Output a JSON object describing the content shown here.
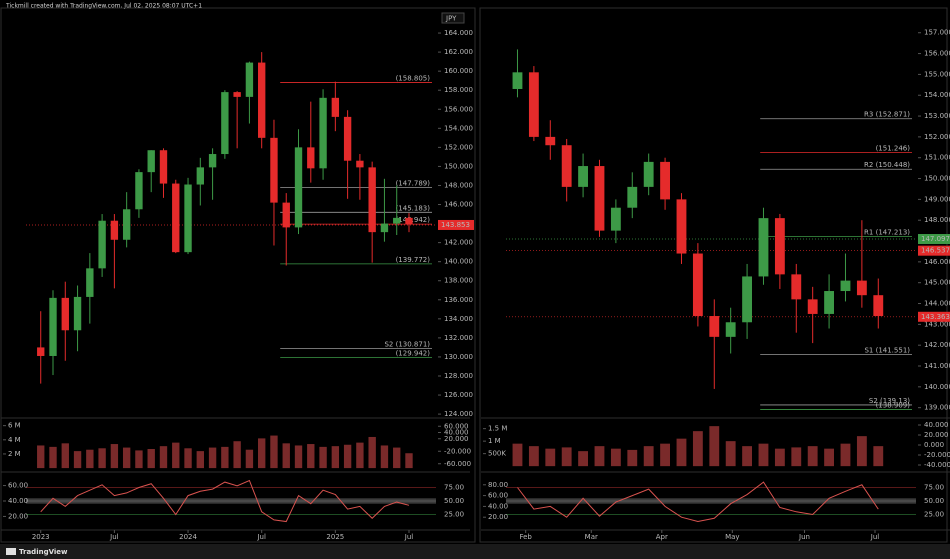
{
  "header": "Tickmill created with TradingView.com, Jul 02, 2025 08:07 UTC+1",
  "footer": "TradingView",
  "chart_data": [
    {
      "type": "candlestick",
      "currency": "JPY",
      "up_color": "#3d9a47",
      "down_color": "#e52b2b",
      "x": [
        0,
        1,
        2,
        3,
        4,
        5,
        6,
        7,
        8,
        9,
        10,
        11,
        12,
        13,
        14,
        15,
        16,
        17,
        18,
        19,
        20,
        21,
        22,
        23,
        24,
        25,
        26,
        27,
        28,
        29,
        30
      ],
      "open": [
        131,
        130.1,
        136.2,
        132.8,
        136.3,
        139.3,
        144.3,
        142.3,
        145.5,
        149.4,
        151.7,
        148.2,
        141.0,
        148.1,
        149.9,
        151.3,
        157.8,
        157.3,
        160.9,
        153.0,
        146.2,
        143.6,
        152.0,
        149.8,
        157.2,
        155.2,
        150.6,
        149.9,
        143.1,
        144.0,
        144.6
      ],
      "high": [
        134.8,
        137.0,
        137.9,
        137.5,
        140.9,
        145.0,
        145.0,
        147.3,
        149.7,
        151.7,
        151.9,
        148.6,
        148.8,
        150.9,
        151.9,
        158.0,
        157.9,
        161.0,
        162.0,
        154.9,
        147.2,
        153.9,
        156.8,
        158.1,
        158.9,
        155.9,
        151.3,
        150.5,
        148.7,
        148.0,
        145.1
      ],
      "low": [
        127.2,
        128.1,
        129.6,
        130.6,
        133.5,
        138.4,
        137.2,
        141.5,
        144.6,
        147.3,
        146.7,
        140.9,
        140.8,
        145.9,
        146.5,
        150.8,
        151.9,
        154.5,
        151.9,
        141.7,
        139.6,
        142.9,
        148.3,
        148.6,
        153.7,
        146.6,
        146.5,
        139.9,
        142.1,
        142.8,
        143.1
      ],
      "close": [
        130.1,
        136.2,
        132.8,
        136.3,
        139.3,
        144.3,
        142.3,
        145.5,
        149.4,
        151.7,
        148.2,
        141.0,
        148.1,
        149.9,
        151.3,
        157.8,
        157.3,
        160.9,
        153.0,
        146.2,
        143.6,
        152.0,
        149.8,
        157.2,
        155.2,
        150.6,
        149.9,
        143.1,
        144.0,
        144.6,
        143.9
      ],
      "xlim": [
        -1.2,
        32.2
      ],
      "xticks": [
        {
          "value": 0,
          "label": "2023"
        },
        {
          "value": 6,
          "label": "Jul"
        },
        {
          "value": 12,
          "label": "2024"
        },
        {
          "value": 18,
          "label": "Jul"
        },
        {
          "value": 24,
          "label": "2025"
        },
        {
          "value": 30,
          "label": "Jul"
        }
      ],
      "ylim": [
        123.8,
        166.0
      ],
      "yticks": [
        {
          "value": 124,
          "label": "124.000"
        },
        {
          "value": 126,
          "label": "126.000"
        },
        {
          "value": 128,
          "label": "128.000"
        },
        {
          "value": 130,
          "label": "130.000"
        },
        {
          "value": 132,
          "label": "132.000"
        },
        {
          "value": 134,
          "label": "134.000"
        },
        {
          "value": 136,
          "label": "136.000"
        },
        {
          "value": 138,
          "label": "138.000"
        },
        {
          "value": 140,
          "label": "140.000"
        },
        {
          "value": 142,
          "label": "142.000"
        },
        {
          "value": 144,
          "label": "144.000"
        },
        {
          "value": 146,
          "label": "146.000"
        },
        {
          "value": 148,
          "label": "148.000"
        },
        {
          "value": 150,
          "label": "150.000"
        },
        {
          "value": 152,
          "label": "152.000"
        },
        {
          "value": 154,
          "label": "154.000"
        },
        {
          "value": 156,
          "label": "156.000"
        },
        {
          "value": 158,
          "label": "158.000"
        },
        {
          "value": 160,
          "label": "160.000"
        },
        {
          "value": 162,
          "label": "162.000"
        },
        {
          "value": 164,
          "label": "164.000"
        }
      ],
      "levels": [
        {
          "value": 158.805,
          "label": "(158.805)",
          "color": "#e52b2b"
        },
        {
          "value": 147.789,
          "label": "(147.789)",
          "color": "#9a9a9a"
        },
        {
          "value": 145.183,
          "label": "(145.183)",
          "color": "#9a9a9a"
        },
        {
          "value": 143.942,
          "label": "(143.942)",
          "color": "#e52b2b"
        },
        {
          "value": 139.772,
          "label": "(139.772)",
          "color": "#3d9a47"
        },
        {
          "value": 130.871,
          "label": "S2 (130.871)",
          "color": "#9a9a9a"
        },
        {
          "value": 129.942,
          "label": "(129.942)",
          "color": "#3d9a47"
        },
        {
          "value": 143.853,
          "color": "#e52b2b",
          "box": true
        }
      ],
      "volume": {
        "color": "#7a2a2a",
        "values": [
          3200000,
          3000000,
          3500000,
          2400000,
          2600000,
          2800000,
          3400000,
          2900000,
          2500000,
          2700000,
          3100000,
          3600000,
          2800000,
          2400000,
          2900000,
          3000000,
          3800000,
          2600000,
          4200000,
          4600000,
          3500000,
          3200000,
          3400000,
          3000000,
          3100000,
          3300000,
          3600000,
          4400000,
          3200000,
          2900000,
          2100000
        ],
        "ylim": [
          -270000,
          6800000
        ],
        "yticks": [
          {
            "value": 6000000,
            "label": "6 M"
          },
          {
            "value": 4000000,
            "label": "4 M"
          },
          {
            "value": 2000000,
            "label": "2 M"
          }
        ],
        "y2lim": [
          -80,
          80
        ],
        "y2ticks": [
          {
            "value": 60,
            "label": "60.000"
          },
          {
            "value": 40,
            "label": "40.000"
          },
          {
            "value": 20,
            "label": "20.000"
          },
          {
            "value": -20,
            "label": "-20.000"
          },
          {
            "value": -60,
            "label": "-60.000"
          }
        ]
      },
      "oscillator": {
        "color": "#d9534f",
        "values": [
          30,
          55,
          40,
          60,
          70,
          80,
          60,
          65,
          75,
          82,
          55,
          25,
          60,
          68,
          72,
          85,
          78,
          88,
          30,
          15,
          12,
          60,
          45,
          70,
          62,
          35,
          40,
          18,
          40,
          48,
          42
        ],
        "ylim": [
          0,
          100
        ],
        "yticks": [
          {
            "value": 75,
            "label": "75.00"
          },
          {
            "value": 50,
            "label": "50.00"
          },
          {
            "value": 25,
            "label": "25.00"
          }
        ],
        "left_ylim": [
          5,
          75
        ],
        "left_yticks": [
          {
            "value": 60,
            "label": "60.00"
          },
          {
            "value": 40,
            "label": "40.00"
          },
          {
            "value": 20,
            "label": "20.00"
          }
        ]
      }
    },
    {
      "type": "candlestick",
      "up_color": "#3d9a47",
      "down_color": "#e52b2b",
      "x": [
        -0.5,
        0.5,
        1.5,
        2.5,
        3.5,
        4.5,
        5.5,
        6.5,
        7.5,
        8.5,
        9.5,
        10.5,
        11.5,
        12.5,
        13.5,
        14.5,
        15.5,
        16.5,
        17.5,
        18.5,
        19.5,
        20.5,
        21.5
      ],
      "open": [
        154.3,
        155.1,
        152.0,
        151.6,
        149.6,
        150.6,
        147.5,
        148.6,
        149.6,
        150.8,
        149.0,
        146.4,
        143.4,
        142.4,
        143.1,
        145.3,
        148.1,
        145.4,
        144.2,
        143.5,
        144.6,
        145.1,
        144.4
      ],
      "high": [
        156.2,
        155.4,
        152.8,
        151.9,
        151.2,
        150.9,
        149.0,
        150.3,
        151.2,
        151.0,
        149.3,
        146.9,
        144.2,
        143.8,
        145.9,
        148.6,
        148.3,
        145.9,
        144.8,
        145.4,
        146.4,
        148.0,
        145.2
      ],
      "low": [
        153.9,
        151.8,
        150.9,
        148.9,
        149.1,
        147.2,
        146.9,
        148.1,
        149.2,
        148.5,
        145.9,
        142.9,
        139.9,
        141.6,
        142.3,
        144.9,
        144.7,
        142.6,
        142.1,
        142.8,
        144.1,
        143.8,
        142.8
      ],
      "close": [
        155.1,
        152.0,
        151.6,
        149.6,
        150.6,
        147.5,
        148.6,
        149.6,
        150.8,
        149.0,
        146.4,
        143.4,
        142.4,
        143.1,
        145.3,
        148.1,
        145.4,
        144.2,
        143.5,
        144.6,
        145.1,
        144.4,
        143.4
      ],
      "xlim": [
        -1.2,
        23.8
      ],
      "xticks": [
        {
          "value": 0,
          "label": "Feb"
        },
        {
          "value": 4,
          "label": "Mar"
        },
        {
          "value": 8.3,
          "label": "Apr"
        },
        {
          "value": 12.6,
          "label": "May"
        },
        {
          "value": 17,
          "label": "Jun"
        },
        {
          "value": 21.3,
          "label": "Jul"
        }
      ],
      "ylim": [
        138.6,
        157.9
      ],
      "yticks": [
        {
          "value": 139,
          "label": "139.000"
        },
        {
          "value": 140,
          "label": "140.000"
        },
        {
          "value": 141,
          "label": "141.000"
        },
        {
          "value": 142,
          "label": "142.000"
        },
        {
          "value": 143,
          "label": "143.000"
        },
        {
          "value": 144,
          "label": "144.000"
        },
        {
          "value": 145,
          "label": "145.000"
        },
        {
          "value": 146,
          "label": "146.000"
        },
        {
          "value": 147,
          "label": "147.000"
        },
        {
          "value": 148,
          "label": "148.000"
        },
        {
          "value": 149,
          "label": "149.000"
        },
        {
          "value": 150,
          "label": "150.000"
        },
        {
          "value": 151,
          "label": "151.000"
        },
        {
          "value": 152,
          "label": "152.000"
        },
        {
          "value": 153,
          "label": "153.000"
        },
        {
          "value": 154,
          "label": "154.000"
        },
        {
          "value": 155,
          "label": "155.000"
        },
        {
          "value": 156,
          "label": "156.000"
        },
        {
          "value": 157,
          "label": "157.000"
        }
      ],
      "levels": [
        {
          "value": 152.871,
          "label": "R3 (152.871)",
          "color": "#9a9a9a"
        },
        {
          "value": 151.246,
          "label": "(151.246)",
          "color": "#e52b2b"
        },
        {
          "value": 150.448,
          "label": "R2 (150.448)",
          "color": "#9a9a9a"
        },
        {
          "value": 147.213,
          "label": "R1 (147.213)",
          "color": "#3d9a47"
        },
        {
          "value": 141.551,
          "label": "S1 (141.551)",
          "color": "#9a9a9a"
        },
        {
          "value": 139.13,
          "label": "S2 (139.13)",
          "color": "#9a9a9a"
        },
        {
          "value": 138.909,
          "label": "(138.909)",
          "color": "#3d9a47"
        },
        {
          "value": 147.097,
          "color": "#3d9a47",
          "box": true
        },
        {
          "value": 146.537,
          "color": "#e52b2b",
          "box": true
        },
        {
          "value": 143.363,
          "color": "#e52b2b",
          "box": true
        }
      ],
      "volume": {
        "color": "#7a2a2a",
        "values": [
          900000,
          800000,
          700000,
          750000,
          600000,
          800000,
          700000,
          650000,
          800000,
          900000,
          1100000,
          1400000,
          1600000,
          1000000,
          800000,
          900000,
          700000,
          750000,
          800000,
          700000,
          900000,
          1200000,
          800000
        ],
        "ylim": [
          -154000,
          1846000
        ],
        "yticks": [
          {
            "value": 1500000,
            "label": "1.5 M"
          },
          {
            "value": 1000000,
            "label": "1 M"
          },
          {
            "value": 500000,
            "label": "500K"
          }
        ],
        "y2lim": [
          -50,
          50
        ],
        "y2ticks": [
          {
            "value": 40,
            "label": "40.000"
          },
          {
            "value": 20,
            "label": "20.000"
          },
          {
            "value": 0,
            "label": "0.000"
          },
          {
            "value": -20,
            "label": "-20.000"
          },
          {
            "value": -40,
            "label": "-40.000"
          }
        ]
      },
      "oscillator": {
        "color": "#d9534f",
        "values": [
          75,
          35,
          40,
          20,
          55,
          22,
          48,
          60,
          72,
          40,
          20,
          12,
          18,
          45,
          62,
          85,
          38,
          30,
          25,
          55,
          68,
          80,
          35
        ],
        "ylim": [
          0,
          100
        ],
        "yticks": [
          {
            "value": 75,
            "label": "75.00"
          },
          {
            "value": 50,
            "label": "50.00"
          },
          {
            "value": 25,
            "label": "25.00"
          }
        ],
        "left_ylim": [
          0,
          100
        ],
        "left_yticks": [
          {
            "value": 80,
            "label": "80.00"
          },
          {
            "value": 60,
            "label": "60.00"
          },
          {
            "value": 40,
            "label": "40.00"
          },
          {
            "value": 20,
            "label": "20.00"
          }
        ]
      }
    }
  ]
}
